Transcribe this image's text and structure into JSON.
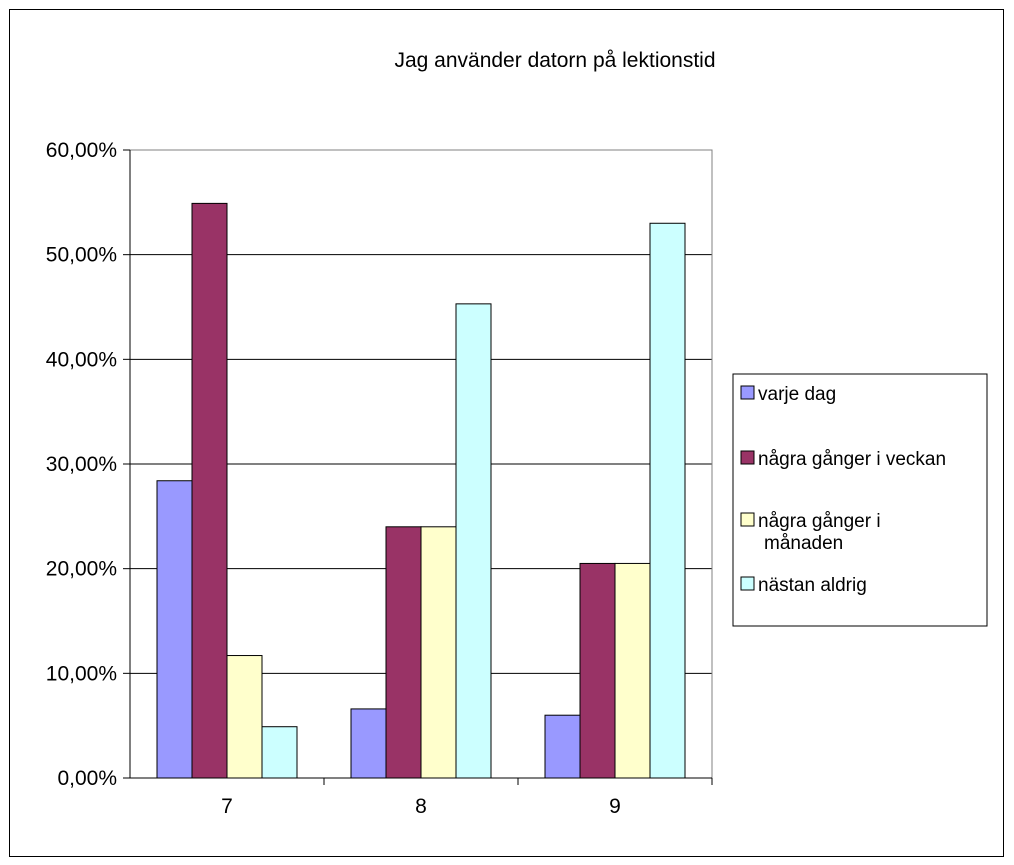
{
  "chart_data": {
    "type": "bar",
    "title": "Jag använder datorn på lektionstid",
    "xlabel": "",
    "ylabel": "",
    "categories": [
      "7",
      "8",
      "9"
    ],
    "series": [
      {
        "name": "varje dag",
        "color": "#9999FF",
        "values": [
          28.4,
          6.6,
          6.0
        ]
      },
      {
        "name": "några gånger i veckan",
        "color": "#993366",
        "values": [
          54.9,
          24.0,
          20.5
        ]
      },
      {
        "name": "några gånger i månaden",
        "color": "#FFFFCC",
        "values": [
          11.7,
          24.0,
          20.5
        ]
      },
      {
        "name": "nästan aldrig",
        "color": "#CCFFFF",
        "values": [
          4.9,
          45.3,
          53.0
        ]
      }
    ],
    "ylim": [
      0,
      60
    ],
    "yticks": [
      "0,00%",
      "10,00%",
      "20,00%",
      "30,00%",
      "40,00%",
      "50,00%",
      "60,00%"
    ],
    "grid": true,
    "legend": "right"
  }
}
